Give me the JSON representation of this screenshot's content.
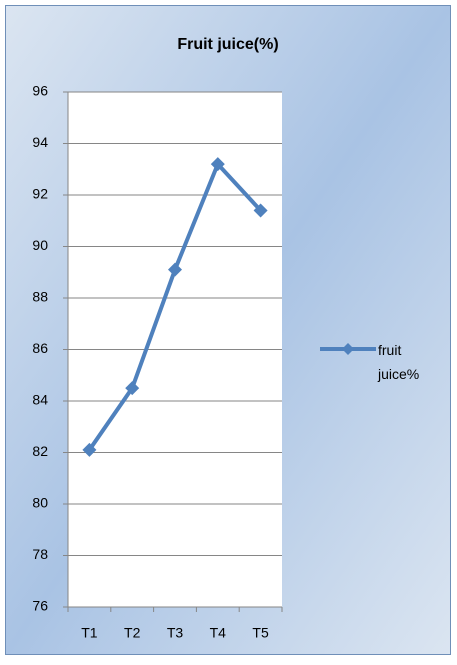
{
  "chart_data": {
    "type": "line",
    "title": "Fruit juice(%)",
    "categories": [
      "T1",
      "T2",
      "T3",
      "T4",
      "T5"
    ],
    "series": [
      {
        "name": "fruit juice%",
        "color": "#4f81bd",
        "values": [
          82.1,
          84.5,
          89.1,
          93.2,
          91.4
        ]
      }
    ],
    "ylim": [
      76,
      96
    ],
    "yticks": [
      76,
      78,
      80,
      82,
      84,
      86,
      88,
      90,
      92,
      94,
      96
    ],
    "grid": true,
    "legend": "right"
  }
}
